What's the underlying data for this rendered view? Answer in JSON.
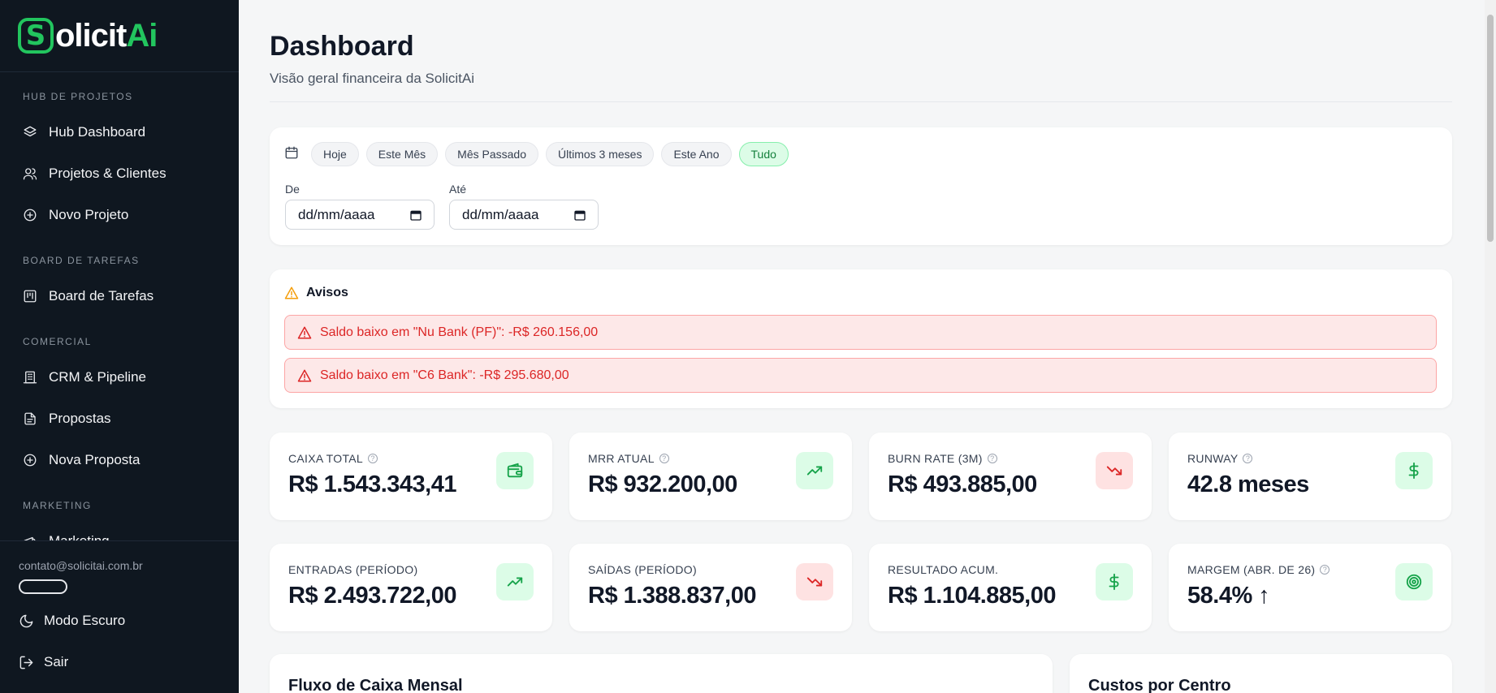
{
  "brand": {
    "logo_letter": "S",
    "logo_text": "olicit",
    "logo_accent": "Ai",
    "accent_color": "#22c55e"
  },
  "sidebar": {
    "sections": [
      {
        "title": "HUB DE PROJETOS",
        "items": [
          {
            "label": "Hub Dashboard",
            "icon": "layers-icon"
          },
          {
            "label": "Projetos & Clientes",
            "icon": "users-icon"
          },
          {
            "label": "Novo Projeto",
            "icon": "plus-circle-icon"
          }
        ]
      },
      {
        "title": "BOARD DE TAREFAS",
        "items": [
          {
            "label": "Board de Tarefas",
            "icon": "kanban-icon"
          }
        ]
      },
      {
        "title": "COMERCIAL",
        "items": [
          {
            "label": "CRM & Pipeline",
            "icon": "building-icon"
          },
          {
            "label": "Propostas",
            "icon": "file-text-icon"
          },
          {
            "label": "Nova Proposta",
            "icon": "plus-circle-icon"
          }
        ]
      },
      {
        "title": "MARKETING",
        "items": [
          {
            "label": "Marketing",
            "icon": "megaphone-icon"
          }
        ]
      }
    ],
    "footer": {
      "email": "contato@solicitai.com.br",
      "dark_mode_label": "Modo Escuro",
      "logout_label": "Sair"
    }
  },
  "header": {
    "title": "Dashboard",
    "subtitle": "Visão geral financeira da SolicitAi"
  },
  "filters": {
    "chips": [
      {
        "label": "Hoje",
        "active": false
      },
      {
        "label": "Este Mês",
        "active": false
      },
      {
        "label": "Mês Passado",
        "active": false
      },
      {
        "label": "Últimos 3 meses",
        "active": false
      },
      {
        "label": "Este Ano",
        "active": false
      },
      {
        "label": "Tudo",
        "active": true
      }
    ],
    "from_label": "De",
    "to_label": "Até",
    "from_value": "dd/mm/aaaa",
    "to_value": "dd/mm/aaaa"
  },
  "alerts": {
    "title": "Avisos",
    "items": [
      "Saldo baixo em \"Nu Bank (PF)\": -R$ 260.156,00",
      "Saldo baixo em \"C6 Bank\": -R$ 295.680,00"
    ]
  },
  "kpis": [
    {
      "label": "CAIXA TOTAL",
      "value": "R$ 1.543.343,41",
      "help": true,
      "icon": "wallet-icon",
      "tone": "green"
    },
    {
      "label": "MRR ATUAL",
      "value": "R$ 932.200,00",
      "help": true,
      "icon": "trending-up-icon",
      "tone": "green"
    },
    {
      "label": "BURN RATE (3M)",
      "value": "R$ 493.885,00",
      "help": true,
      "icon": "trending-down-icon",
      "tone": "red"
    },
    {
      "label": "RUNWAY",
      "value": "42.8 meses",
      "help": true,
      "icon": "dollar-icon",
      "tone": "green"
    },
    {
      "label": "ENTRADAS (PERÍODO)",
      "value": "R$ 2.493.722,00",
      "help": false,
      "icon": "trending-up-icon",
      "tone": "green"
    },
    {
      "label": "SAÍDAS (PERÍODO)",
      "value": "R$ 1.388.837,00",
      "help": false,
      "icon": "trending-down-icon",
      "tone": "red"
    },
    {
      "label": "RESULTADO ACUM.",
      "value": "R$ 1.104.885,00",
      "help": false,
      "icon": "dollar-icon",
      "tone": "green"
    },
    {
      "label": "MARGEM (ABR. DE 26)",
      "value": "58.4%",
      "value_suffix": "↑",
      "help": true,
      "icon": "target-icon",
      "tone": "green"
    }
  ],
  "panels": {
    "cashflow_title": "Fluxo de Caixa Mensal",
    "costs_title": "Custos por Centro"
  },
  "help_glyph": "?"
}
